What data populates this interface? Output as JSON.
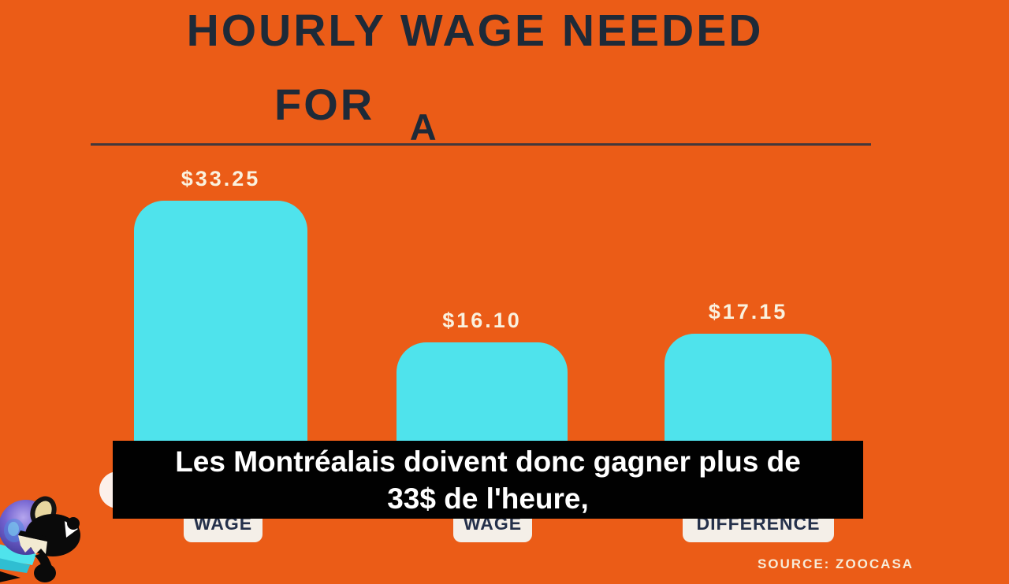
{
  "frame": {
    "caption": {
      "line1": "Les Montréalais doivent donc gagner plus de",
      "line2": "33$ de l'heure,"
    },
    "source": "SOURCE: ZOOCASA"
  },
  "chart_data": {
    "type": "bar",
    "title": "HOURLY WAGE NEEDED FOR A",
    "title_words": {
      "line1": "HOURLY WAGE NEEDED",
      "line2_a": "FOR",
      "line2_b": "A"
    },
    "categories": [
      "WAGE",
      "WAGE",
      "DIFFERENCE"
    ],
    "values": [
      33.25,
      16.1,
      17.15
    ],
    "value_labels": [
      "$33.25",
      "$16.10",
      "$17.15"
    ],
    "xlabel": "",
    "ylabel": "",
    "legend": "none",
    "gridlines": false,
    "bar_color": "#4FE3EC",
    "background_color": "#EB5C17",
    "title_color": "#1E2A38",
    "value_label_color": "#FAF1DE",
    "category_chip_bg": "#F4EFE8",
    "category_chip_text": "#24304A"
  },
  "icons": {
    "mascot": "goggles-mole-mascot"
  }
}
